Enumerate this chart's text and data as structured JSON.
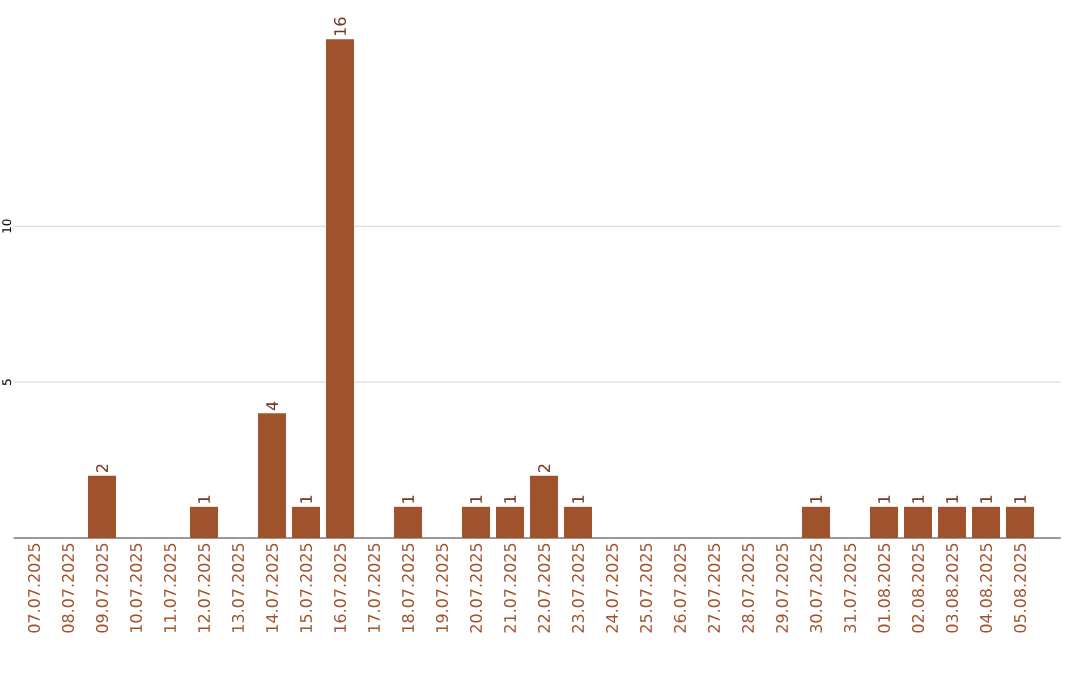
{
  "chart_data": {
    "type": "bar",
    "categories": [
      "07.07.2025",
      "08.07.2025",
      "09.07.2025",
      "10.07.2025",
      "11.07.2025",
      "12.07.2025",
      "13.07.2025",
      "14.07.2025",
      "15.07.2025",
      "16.07.2025",
      "17.07.2025",
      "18.07.2025",
      "19.07.2025",
      "20.07.2025",
      "21.07.2025",
      "22.07.2025",
      "23.07.2025",
      "24.07.2025",
      "25.07.2025",
      "26.07.2025",
      "27.07.2025",
      "28.07.2025",
      "29.07.2025",
      "30.07.2025",
      "31.07.2025",
      "01.08.2025",
      "02.08.2025",
      "03.08.2025",
      "04.08.2025",
      "05.08.2025"
    ],
    "values": [
      0,
      0,
      2,
      0,
      0,
      1,
      0,
      4,
      1,
      16,
      0,
      1,
      0,
      1,
      1,
      2,
      1,
      0,
      0,
      0,
      0,
      0,
      0,
      1,
      0,
      1,
      1,
      1,
      1,
      1
    ],
    "value_labels": [
      null,
      null,
      "2",
      null,
      null,
      "1",
      null,
      "4",
      "1",
      "16",
      null,
      "1",
      null,
      "1",
      "1",
      "2",
      "1",
      null,
      null,
      null,
      null,
      null,
      null,
      "1",
      null,
      "1",
      "1",
      "1",
      "1",
      "1"
    ],
    "color": "#a0522d",
    "ylim": [
      0,
      16
    ],
    "yticks": [
      5,
      10
    ],
    "grid": "y"
  }
}
